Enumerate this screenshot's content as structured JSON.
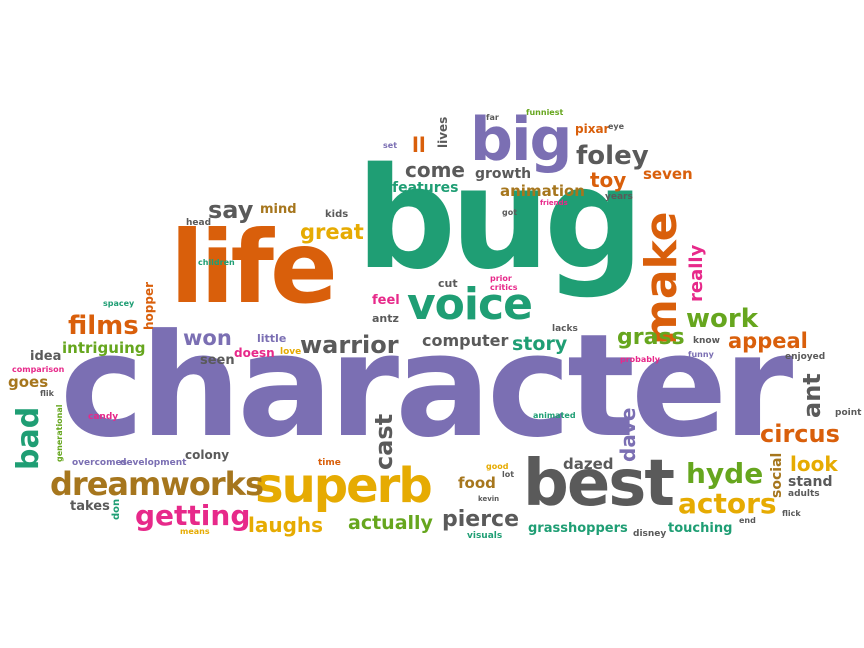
{
  "cloud": {
    "palette": {
      "purple": "#7b6fb3",
      "green": "#1f9e74",
      "orange": "#d95f0b",
      "gray": "#5a5a5a",
      "yellow": "#e6ab02",
      "olive": "#66a61e",
      "pink": "#e7298a",
      "brown": "#a6761d"
    },
    "words": {
      "character": "character",
      "bug": "bug",
      "life": "life",
      "best": "best",
      "superb": "superb",
      "make": "make",
      "voice": "voice",
      "big": "big",
      "dreamworks": "dreamworks",
      "warrior": "warrior",
      "foley": "foley",
      "films": "films",
      "getting": "getting",
      "hyde": "hyde",
      "circus": "circus",
      "actors": "actors",
      "pierce": "pierce",
      "actually": "actually",
      "laughs": "laughs",
      "work": "work",
      "appeal": "appeal",
      "grass": "grass",
      "story": "story",
      "computer": "computer",
      "won": "won",
      "great": "great",
      "say": "say",
      "come": "come",
      "features": "features",
      "growth": "growth",
      "animation": "animation",
      "toy": "toy",
      "seven": "seven",
      "really": "really",
      "cast": "cast",
      "dave": "dave",
      "ant": "ant",
      "look": "look",
      "social": "social",
      "stand": "stand",
      "bad": "bad",
      "goes": "goes",
      "idea": "idea",
      "intriguing": "intriguing",
      "seen": "seen",
      "doesn": "doesn",
      "little": "little",
      "love": "love",
      "feel": "feel",
      "antz": "antz",
      "lacks": "lacks",
      "dazed": "dazed",
      "food": "food",
      "grasshoppers": "grasshoppers",
      "touching": "touching",
      "disney": "disney",
      "visuals": "visuals",
      "takes": "takes",
      "don": "don",
      "means": "means",
      "colony": "colony",
      "development": "development",
      "overcomes": "overcomes",
      "candy": "candy",
      "generational": "generational",
      "flik": "flik",
      "comparison": "comparison",
      "hopper": "hopper",
      "spacey": "spacey",
      "children": "children",
      "head": "head",
      "mind": "mind",
      "kids": "kids",
      "set": "set",
      "ll": "ll",
      "lives": "lives",
      "far": "far",
      "funniest": "funniest",
      "pixar": "pixar",
      "eye": "eye",
      "got": "got",
      "friends": "friends",
      "years": "years",
      "cut": "cut",
      "prior": "prior",
      "critics": "critics",
      "know": "know",
      "funny": "funny",
      "probably": "probably",
      "enjoyed": "enjoyed",
      "point": "point",
      "animated": "animated",
      "time": "time",
      "good": "good",
      "lot": "lot",
      "kevin": "kevin",
      "end": "end",
      "flick": "flick",
      "adults": "adults"
    }
  }
}
